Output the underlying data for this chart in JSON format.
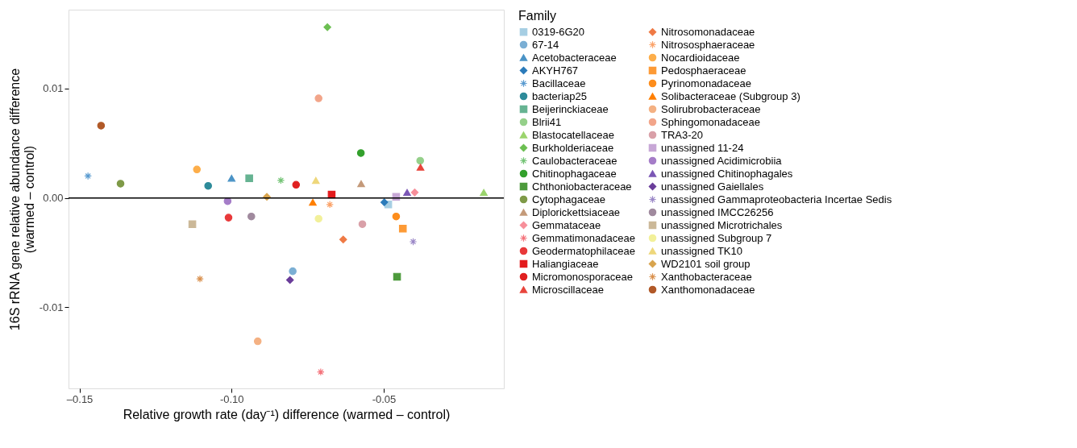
{
  "chart_data": {
    "type": "scatter",
    "xlabel": "Relative growth rate (day⁻¹) difference (warmed – control)",
    "ylabel": "16S rRNA gene relative abundance difference\n(warmed – control)",
    "legend_title": "Family",
    "legend": "right",
    "grid": false,
    "xlim": [
      -0.1536,
      -0.0105
    ],
    "ylim": [
      -0.0174,
      0.0172
    ],
    "xticks": [
      {
        "value": -0.15,
        "label": "–0.15"
      },
      {
        "value": -0.1,
        "label": "-0.10"
      },
      {
        "value": -0.05,
        "label": "-0.05"
      }
    ],
    "yticks": [
      {
        "value": -0.01,
        "label": "-0.01"
      },
      {
        "value": 0,
        "label": "0.00"
      },
      {
        "value": 0.01,
        "label": "0.01"
      }
    ],
    "ref_lines": [
      {
        "axis": "y",
        "value": 0,
        "color": "#000000"
      }
    ],
    "series": [
      {
        "name": "0319-6G20",
        "color": "#a6cee3",
        "marker": "square",
        "x": [
          -0.0485
        ],
        "values": [
          -0.0006
        ]
      },
      {
        "name": "67-14",
        "color": "#7bafd4",
        "marker": "circle",
        "x": [
          -0.0799
        ],
        "values": [
          -0.0067
        ]
      },
      {
        "name": "Acetobacteraceae",
        "color": "#4a93c6",
        "marker": "triangle",
        "x": [
          -0.1
        ],
        "values": [
          0.0018
        ]
      },
      {
        "name": "AKYH767",
        "color": "#2b7bba",
        "marker": "diamond",
        "x": [
          -0.0498
        ],
        "values": [
          -0.0004
        ]
      },
      {
        "name": "Bacillaceae",
        "color": "#5a9bd0",
        "marker": "cross",
        "x": [
          -0.1472
        ],
        "values": [
          0.002
        ]
      },
      {
        "name": "bacteriap25",
        "color": "#2e8b9a",
        "marker": "circle",
        "x": [
          -0.1077
        ],
        "values": [
          0.0011
        ]
      },
      {
        "name": "Beijerinckiaceae",
        "color": "#66b392",
        "marker": "square",
        "x": [
          -0.0942
        ],
        "values": [
          0.0018
        ]
      },
      {
        "name": "Blrii41",
        "color": "#95d08a",
        "marker": "circle",
        "x": [
          -0.038
        ],
        "values": [
          0.0034
        ]
      },
      {
        "name": "Blastocatellaceae",
        "color": "#9bd46d",
        "marker": "triangle",
        "x": [
          -0.0171
        ],
        "values": [
          0.0005
        ]
      },
      {
        "name": "Burkholderiaceae",
        "color": "#6cbf52",
        "marker": "diamond",
        "x": [
          -0.0685
        ],
        "values": [
          0.0156
        ]
      },
      {
        "name": "Caulobacteraceae",
        "color": "#74c476",
        "marker": "cross",
        "x": [
          -0.0838
        ],
        "values": [
          0.0016
        ]
      },
      {
        "name": "Chitinophagaceae",
        "color": "#33a02c",
        "marker": "circle",
        "x": [
          -0.0575
        ],
        "values": [
          0.0041
        ]
      },
      {
        "name": "Chthoniobacteraceae",
        "color": "#4d9a3c",
        "marker": "square",
        "x": [
          -0.0456
        ],
        "values": [
          -0.0072
        ]
      },
      {
        "name": "Cytophagaceae",
        "color": "#7f9a48",
        "marker": "circle",
        "x": [
          -0.1365
        ],
        "values": [
          0.0013
        ]
      },
      {
        "name": "Diplorickettsiaceae",
        "color": "#c49a7a",
        "marker": "triangle",
        "x": [
          -0.0574
        ],
        "values": [
          0.0013
        ]
      },
      {
        "name": "Gemmataceae",
        "color": "#f78f9a",
        "marker": "diamond",
        "x": [
          -0.0398
        ],
        "values": [
          0.0005
        ]
      },
      {
        "name": "Gemmatimonadaceae",
        "color": "#f4747c",
        "marker": "cross",
        "x": [
          -0.0707
        ],
        "values": [
          -0.0159
        ]
      },
      {
        "name": "Geodermatophilaceae",
        "color": "#e8393a",
        "marker": "circle",
        "x": [
          -0.101
        ],
        "values": [
          -0.0018
        ]
      },
      {
        "name": "Haliangiaceae",
        "color": "#e31a1c",
        "marker": "square",
        "x": [
          -0.0671
        ],
        "values": [
          0.0003
        ]
      },
      {
        "name": "Micromonosporaceae",
        "color": "#e02020",
        "marker": "circle",
        "x": [
          -0.0788
        ],
        "values": [
          0.0012
        ]
      },
      {
        "name": "Microscillaceae",
        "color": "#e8453c",
        "marker": "triangle",
        "x": [
          -0.0379
        ],
        "values": [
          0.0028
        ]
      },
      {
        "name": "Nitrosomonadaceae",
        "color": "#ef7a45",
        "marker": "diamond",
        "x": [
          -0.0633
        ],
        "values": [
          -0.0038
        ]
      },
      {
        "name": "Nitrososphaeraceae",
        "color": "#fba36a",
        "marker": "cross",
        "x": [
          -0.0677
        ],
        "values": [
          -0.0006
        ]
      },
      {
        "name": "Nocardioidaceae",
        "color": "#fdae4a",
        "marker": "circle",
        "x": [
          -0.1114
        ],
        "values": [
          0.0026
        ]
      },
      {
        "name": "Pedosphaeraceae",
        "color": "#fd9a35",
        "marker": "square",
        "x": [
          -0.0437
        ],
        "values": [
          -0.0028
        ]
      },
      {
        "name": "Pyrinomonadaceae",
        "color": "#fd8d1c",
        "marker": "circle",
        "x": [
          -0.0459
        ],
        "values": [
          -0.0017
        ]
      },
      {
        "name": "Solibacteraceae (Subgroup 3)",
        "color": "#ff7f00",
        "marker": "triangle",
        "x": [
          -0.0733
        ],
        "values": [
          -0.0004
        ]
      },
      {
        "name": "Solirubrobacteraceae",
        "color": "#f4b183",
        "marker": "circle",
        "x": [
          -0.0914
        ],
        "values": [
          -0.0131
        ]
      },
      {
        "name": "Sphingomonadaceae",
        "color": "#f2a58a",
        "marker": "circle",
        "x": [
          -0.0714
        ],
        "values": [
          0.0091
        ]
      },
      {
        "name": "TRA3-20",
        "color": "#d9a0a8",
        "marker": "circle",
        "x": [
          -0.057
        ],
        "values": [
          -0.0024
        ]
      },
      {
        "name": "unassigned 11-24",
        "color": "#c7a7d6",
        "marker": "square",
        "x": [
          -0.0459
        ],
        "values": [
          0.0001
        ]
      },
      {
        "name": "unassigned Acidimicrobiia",
        "color": "#a57dc8",
        "marker": "circle",
        "x": [
          -0.1013
        ],
        "values": [
          -0.0003
        ]
      },
      {
        "name": "unassigned Chitinophagales",
        "color": "#7b57b5",
        "marker": "triangle",
        "x": [
          -0.0423
        ],
        "values": [
          0.0005
        ]
      },
      {
        "name": "unassigned Gaiellales",
        "color": "#6a3d9a",
        "marker": "diamond",
        "x": [
          -0.0808
        ],
        "values": [
          -0.0075
        ]
      },
      {
        "name": "unassigned Gammaproteobacteria Incertae Sedis",
        "color": "#9b88c7",
        "marker": "cross",
        "x": [
          -0.0403
        ],
        "values": [
          -0.004
        ]
      },
      {
        "name": "unassigned IMCC26256",
        "color": "#a08a9e",
        "marker": "circle",
        "x": [
          -0.0935
        ],
        "values": [
          -0.0017
        ]
      },
      {
        "name": "unassigned Microtrichales",
        "color": "#cbb898",
        "marker": "square",
        "x": [
          -0.1129
        ],
        "values": [
          -0.0024
        ]
      },
      {
        "name": "unassigned Subgroup 7",
        "color": "#f2f09a",
        "marker": "circle",
        "x": [
          -0.0714
        ],
        "values": [
          -0.0019
        ]
      },
      {
        "name": "unassigned TK10",
        "color": "#eed77b",
        "marker": "triangle",
        "x": [
          -0.0723
        ],
        "values": [
          0.0016
        ]
      },
      {
        "name": "WD2101 soil group",
        "color": "#d8a44e",
        "marker": "diamond",
        "x": [
          -0.0884
        ],
        "values": [
          0.0001
        ]
      },
      {
        "name": "Xanthobacteraceae",
        "color": "#d9904d",
        "marker": "cross",
        "x": [
          -0.1104
        ],
        "values": [
          -0.0074
        ]
      },
      {
        "name": "Xanthomonadaceae",
        "color": "#b15928",
        "marker": "circle",
        "x": [
          -0.1429
        ],
        "values": [
          0.0066
        ]
      }
    ]
  }
}
